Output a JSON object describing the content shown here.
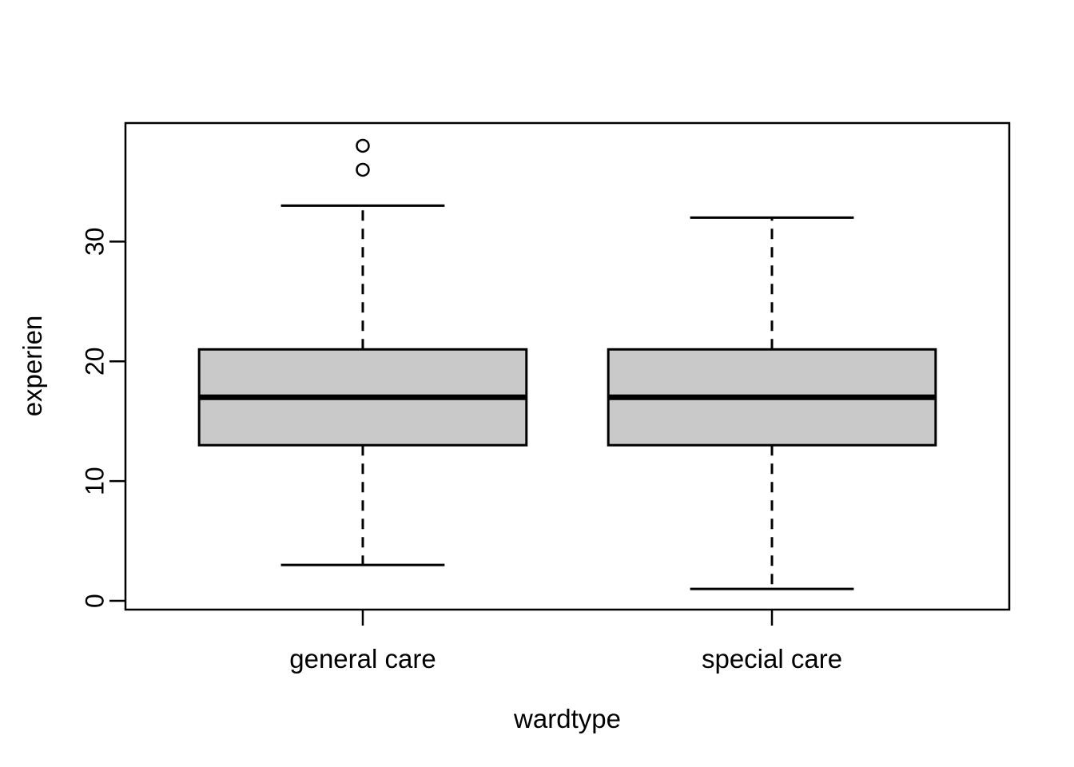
{
  "figure": {
    "background_color": "#ffffff",
    "line_color": "#000000",
    "box_fill_color": "#c9c9c9"
  },
  "chart_data": {
    "type": "boxplot",
    "title": "",
    "xlabel": "wardtype",
    "ylabel": "experien",
    "categories": [
      "general care",
      "special care"
    ],
    "ytick_labels": [
      "0",
      "10",
      "20",
      "30"
    ],
    "yticks": [
      0,
      10,
      20,
      30
    ],
    "ylim": [
      -0.73,
      39.9
    ],
    "grid": false,
    "legend": null,
    "orientation": "vertical",
    "boxes": [
      {
        "category": "general care",
        "lower_whisker": 3,
        "q1": 13,
        "median": 17,
        "q3": 21,
        "upper_whisker": 33,
        "outliers": [
          36,
          38
        ]
      },
      {
        "category": "special care",
        "lower_whisker": 1,
        "q1": 13,
        "median": 17,
        "q3": 21,
        "upper_whisker": 32,
        "outliers": []
      }
    ]
  }
}
